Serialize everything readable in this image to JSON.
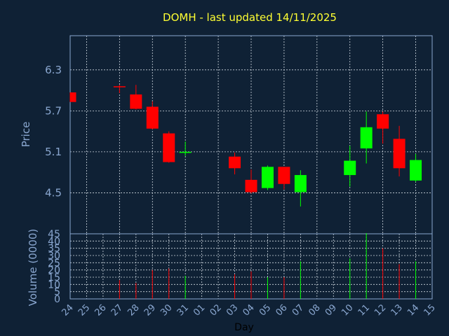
{
  "chart_data": {
    "type": "candlestick",
    "title": "DOMH - last updated 14/11/2025",
    "ylabel": "Price",
    "volume_ylabel": "Volume (0000)",
    "xlabel": "Day",
    "x_tick_labels": [
      "24",
      "25",
      "26",
      "27",
      "28",
      "29",
      "30",
      "31",
      "01",
      "02",
      "03",
      "04",
      "05",
      "06",
      "07",
      "08",
      "09",
      "10",
      "11",
      "12",
      "13",
      "14",
      "15"
    ],
    "y_ticks": [
      "4.5",
      "5.1",
      "5.7",
      "6.3"
    ],
    "ylim": [
      3.9,
      6.8
    ],
    "volume_ticks": [
      "0",
      "5",
      "10",
      "15",
      "20",
      "25",
      "30",
      "35",
      "40",
      "45"
    ],
    "volume_ylim": [
      0,
      45
    ],
    "grid": true,
    "colors": {
      "up": "#00ff00",
      "down": "#ff0000",
      "background": "#0f2135",
      "title": "#ffff33",
      "labels": "#8aa7d0"
    },
    "candles": [
      {
        "day": "24",
        "open": 5.97,
        "high": 5.97,
        "low": 5.83,
        "close": 5.83
      },
      {
        "day": "27",
        "open": 6.06,
        "high": 6.08,
        "low": 5.96,
        "close": 6.05
      },
      {
        "day": "28",
        "open": 5.94,
        "high": 6.08,
        "low": 5.72,
        "close": 5.73
      },
      {
        "day": "29",
        "open": 5.76,
        "high": 5.84,
        "low": 5.43,
        "close": 5.44
      },
      {
        "day": "30",
        "open": 5.37,
        "high": 5.4,
        "low": 4.94,
        "close": 4.95
      },
      {
        "day": "31",
        "open": 5.09,
        "high": 5.25,
        "low": 5.04,
        "close": 5.1
      },
      {
        "day": "03",
        "open": 5.03,
        "high": 5.09,
        "low": 4.77,
        "close": 4.86
      },
      {
        "day": "04",
        "open": 4.69,
        "high": 4.84,
        "low": 4.49,
        "close": 4.51
      },
      {
        "day": "05",
        "open": 4.57,
        "high": 4.9,
        "low": 4.54,
        "close": 4.88
      },
      {
        "day": "06",
        "open": 4.88,
        "high": 4.88,
        "low": 4.55,
        "close": 4.63
      },
      {
        "day": "07",
        "open": 4.51,
        "high": 4.83,
        "low": 4.3,
        "close": 4.76
      },
      {
        "day": "10",
        "open": 4.76,
        "high": 5.19,
        "low": 4.59,
        "close": 4.97
      },
      {
        "day": "11",
        "open": 5.15,
        "high": 5.69,
        "low": 4.93,
        "close": 5.46
      },
      {
        "day": "12",
        "open": 5.65,
        "high": 5.69,
        "low": 5.22,
        "close": 5.44
      },
      {
        "day": "13",
        "open": 5.29,
        "high": 5.48,
        "low": 4.74,
        "close": 4.86
      },
      {
        "day": "14",
        "open": 4.68,
        "high": 5.07,
        "low": 4.66,
        "close": 4.98
      }
    ],
    "volume": [
      {
        "day": "24",
        "value": 0
      },
      {
        "day": "27",
        "value": 13
      },
      {
        "day": "28",
        "value": 11
      },
      {
        "day": "29",
        "value": 20
      },
      {
        "day": "30",
        "value": 21
      },
      {
        "day": "31",
        "value": 16
      },
      {
        "day": "03",
        "value": 17
      },
      {
        "day": "04",
        "value": 19
      },
      {
        "day": "05",
        "value": 15
      },
      {
        "day": "06",
        "value": 15
      },
      {
        "day": "07",
        "value": 26
      },
      {
        "day": "10",
        "value": 28
      },
      {
        "day": "11",
        "value": 46
      },
      {
        "day": "12",
        "value": 35
      },
      {
        "day": "13",
        "value": 24
      },
      {
        "day": "14",
        "value": 26
      }
    ]
  }
}
